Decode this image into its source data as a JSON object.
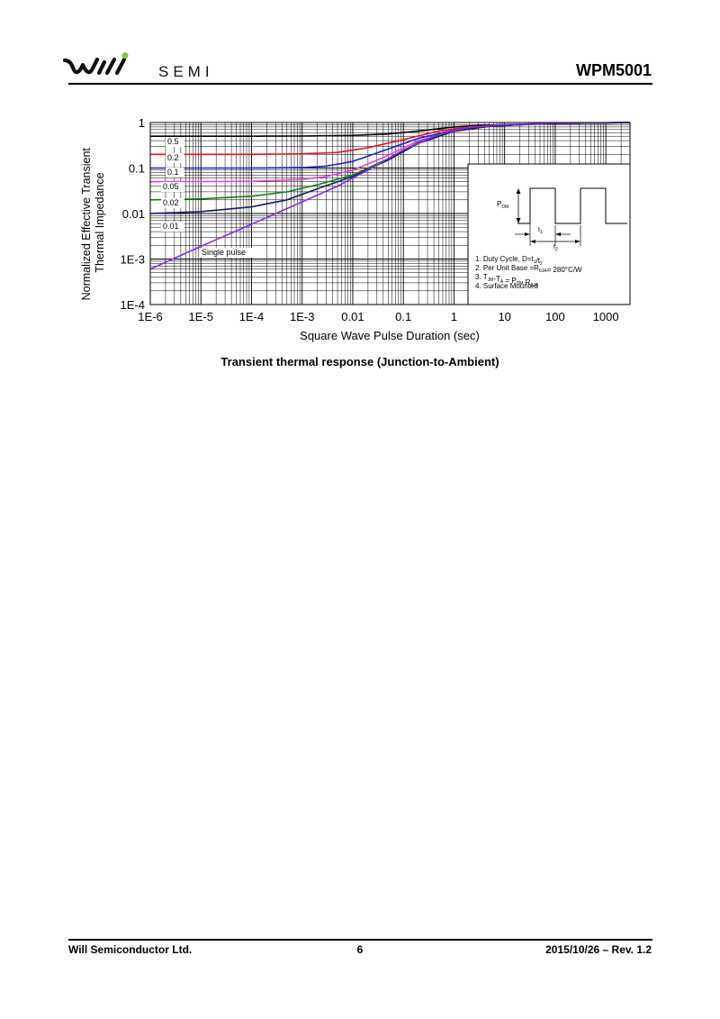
{
  "header": {
    "logo_text": "SEMI",
    "part_number": "WPM5001"
  },
  "footer": {
    "company": "Will Semiconductor Ltd.",
    "page_number": "6",
    "revision": "2015/10/26 – Rev. 1.2"
  },
  "caption": "Transient thermal response (Junction-to-Ambient)",
  "colors": {
    "0.5": "#000000",
    "0.2": "#e8141c",
    "0.1": "#1b1ee6",
    "0.05": "#e53fe6",
    "0.02": "#158215",
    "0.01": "#141a6e",
    "single": "#8a2be2"
  },
  "chart_data": {
    "type": "line",
    "xscale": "log",
    "yscale": "log",
    "xlabel": "Square Wave Pulse Duration (sec)",
    "ylabel": [
      "Normalized Effective Transient",
      "Thermal Impedance"
    ],
    "xlim": [
      1e-06,
      3000
    ],
    "ylim": [
      0.0001,
      1
    ],
    "xticks": [
      {
        "value": 1e-06,
        "label": "1E-6"
      },
      {
        "value": 1e-05,
        "label": "1E-5"
      },
      {
        "value": 0.0001,
        "label": "1E-4"
      },
      {
        "value": 0.001,
        "label": "1E-3"
      },
      {
        "value": 0.01,
        "label": "0.01"
      },
      {
        "value": 0.1,
        "label": "0.1"
      },
      {
        "value": 1,
        "label": "1"
      },
      {
        "value": 10,
        "label": "10"
      },
      {
        "value": 100,
        "label": "100"
      },
      {
        "value": 1000,
        "label": "1000"
      }
    ],
    "yticks": [
      {
        "value": 1,
        "label": "1"
      },
      {
        "value": 0.1,
        "label": "0.1"
      },
      {
        "value": 0.01,
        "label": "0.01"
      },
      {
        "value": 0.001,
        "label": "1E-3"
      },
      {
        "value": 0.0001,
        "label": "1E-4"
      }
    ],
    "grid": true,
    "series": [
      {
        "name": "0.5",
        "x": [
          1e-06,
          0.0001,
          0.001,
          0.01,
          0.05,
          0.2,
          1,
          3,
          10,
          100,
          3000
        ],
        "y": [
          0.5,
          0.5,
          0.505,
          0.52,
          0.56,
          0.65,
          0.8,
          0.86,
          0.9,
          0.95,
          1.0
        ]
      },
      {
        "name": "0.2",
        "x": [
          1e-06,
          0.0001,
          0.001,
          0.005,
          0.02,
          0.1,
          0.5,
          2,
          10,
          100,
          3000
        ],
        "y": [
          0.2,
          0.2,
          0.205,
          0.22,
          0.28,
          0.42,
          0.65,
          0.8,
          0.88,
          0.95,
          1.0
        ]
      },
      {
        "name": "0.1",
        "x": [
          1e-06,
          0.0001,
          0.001,
          0.003,
          0.01,
          0.04,
          0.2,
          1,
          5,
          50,
          3000
        ],
        "y": [
          0.1,
          0.1,
          0.102,
          0.11,
          0.14,
          0.24,
          0.45,
          0.68,
          0.84,
          0.94,
          1.0
        ]
      },
      {
        "name": "0.05",
        "x": [
          1e-06,
          0.0001,
          0.001,
          0.003,
          0.01,
          0.04,
          0.2,
          1,
          5,
          50,
          3000
        ],
        "y": [
          0.05,
          0.051,
          0.056,
          0.065,
          0.09,
          0.17,
          0.4,
          0.66,
          0.83,
          0.94,
          1.0
        ]
      },
      {
        "name": "0.02",
        "x": [
          1e-06,
          1e-05,
          0.0001,
          0.0005,
          0.002,
          0.01,
          0.05,
          0.2,
          1,
          5,
          50,
          3000
        ],
        "y": [
          0.02,
          0.021,
          0.024,
          0.03,
          0.043,
          0.07,
          0.16,
          0.37,
          0.65,
          0.83,
          0.94,
          1.0
        ]
      },
      {
        "name": "0.01",
        "x": [
          1e-06,
          1e-05,
          0.0001,
          0.0005,
          0.002,
          0.01,
          0.05,
          0.2,
          1,
          5,
          50,
          3000
        ],
        "y": [
          0.01,
          0.011,
          0.014,
          0.02,
          0.035,
          0.065,
          0.15,
          0.35,
          0.64,
          0.83,
          0.94,
          1.0
        ]
      },
      {
        "name": "Single pulse",
        "x": [
          1e-06,
          1e-05,
          0.0001,
          0.001,
          0.005,
          0.02,
          0.1,
          0.5,
          2,
          10,
          100,
          3000
        ],
        "y": [
          0.0006,
          0.0019,
          0.0058,
          0.018,
          0.04,
          0.09,
          0.25,
          0.55,
          0.78,
          0.9,
          0.97,
          1.0
        ]
      }
    ],
    "curve_labels": [
      {
        "text": "0.5",
        "series": "0.5"
      },
      {
        "text": "0.2",
        "series": "0.2"
      },
      {
        "text": "0.1",
        "series": "0.1"
      },
      {
        "text": "0.05",
        "series": "0.05"
      },
      {
        "text": "0.02",
        "series": "0.02"
      },
      {
        "text": "0.01",
        "series": "0.01"
      },
      {
        "text": "Single pulse",
        "series": "Single pulse"
      }
    ],
    "inset": {
      "pdm_label": "P",
      "pdm_sub": "DM",
      "t1_label": "t",
      "t1_sub": "1",
      "t2_label": "t",
      "t2_sub": "2",
      "notes": [
        {
          "runs": [
            {
              "t": "1. Duty Cycle, D=t"
            },
            {
              "t": "1",
              "sub": true
            },
            {
              "t": "/t"
            },
            {
              "t": "2",
              "sub": true
            }
          ]
        },
        {
          "runs": [
            {
              "t": "2. Per Unit Base =R"
            },
            {
              "t": "θJA",
              "sub": true
            },
            {
              "t": "= 280°C/W"
            }
          ]
        },
        {
          "runs": [
            {
              "t": "3. T"
            },
            {
              "t": "JM",
              "sub": true
            },
            {
              "t": "-T"
            },
            {
              "t": "A",
              "sub": true
            },
            {
              "t": " = P"
            },
            {
              "t": "DM",
              "sub": true
            },
            {
              "t": " R"
            },
            {
              "t": "θJA",
              "sub": true
            }
          ]
        },
        {
          "runs": [
            {
              "t": "4. Surface Mounted"
            }
          ]
        }
      ]
    }
  }
}
